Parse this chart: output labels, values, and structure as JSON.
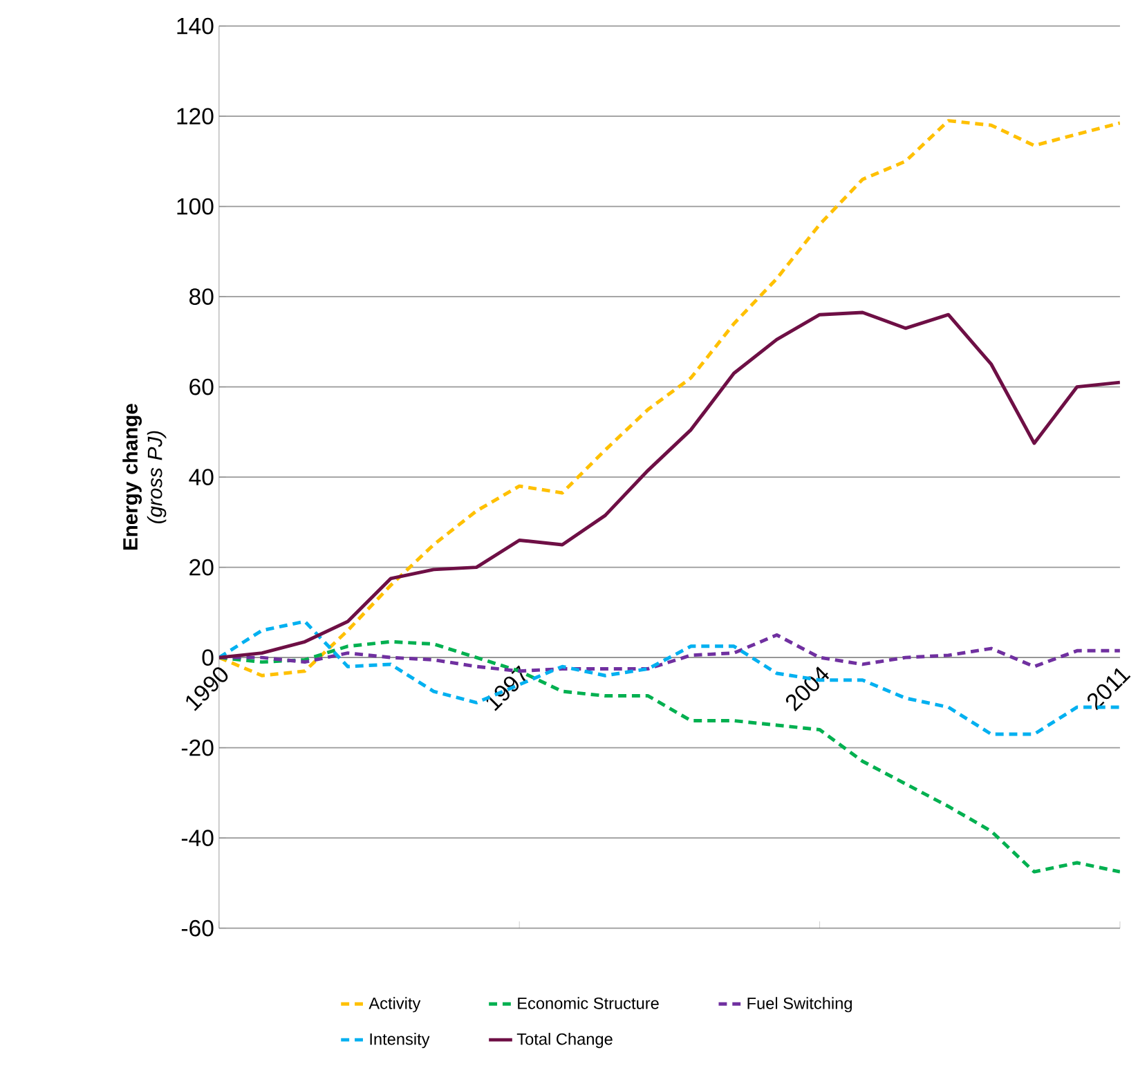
{
  "chart_data": {
    "type": "line",
    "ylabel": "**Energy change** *(gross PJ)*",
    "x": [
      1990,
      1991,
      1992,
      1993,
      1994,
      1995,
      1996,
      1997,
      1998,
      1999,
      2000,
      2001,
      2002,
      2003,
      2004,
      2005,
      2006,
      2007,
      2008,
      2009,
      2010,
      2011
    ],
    "xlim": [
      1990,
      2011
    ],
    "xticks": [
      1990,
      1997,
      2004,
      2011
    ],
    "ylim": [
      -60,
      140
    ],
    "yticks": [
      -60,
      -40,
      -20,
      0,
      20,
      40,
      60,
      80,
      100,
      120,
      140
    ],
    "grid": "y",
    "legend": "bottom",
    "marker": "none",
    "series": [
      {
        "name": "Activity",
        "color": "#ffc000",
        "line_style": "dashed",
        "values": [
          0,
          -4,
          -3,
          6,
          16,
          25,
          32.5,
          38,
          36.5,
          46,
          55,
          62,
          74,
          84,
          96,
          106,
          110,
          119,
          118,
          113.5,
          116,
          118.5
        ]
      },
      {
        "name": "Economic Structure",
        "color": "#00b050",
        "line_style": "dashed",
        "values": [
          0,
          -1,
          -0.5,
          2.5,
          3.5,
          3,
          0,
          -3,
          -7.5,
          -8.5,
          -8.5,
          -14,
          -14,
          -15,
          -16,
          -23,
          -28,
          -33,
          -38.5,
          -47.5,
          -45.5,
          -47.5
        ]
      },
      {
        "name": "Fuel Switching",
        "color": "#7030a0",
        "line_style": "dashed",
        "values": [
          0,
          0,
          -1,
          1,
          0,
          -0.5,
          -2,
          -3,
          -2.5,
          -2.5,
          -2.5,
          0.5,
          1,
          5,
          0,
          -1.5,
          0,
          0.5,
          2,
          -2,
          1.5,
          1.5
        ]
      },
      {
        "name": "Intensity",
        "color": "#00b0f0",
        "line_style": "dashed",
        "values": [
          0,
          6,
          8,
          -2,
          -1.5,
          -7.5,
          -10,
          -6,
          -2,
          -4,
          -2.5,
          2.5,
          2.5,
          -3.5,
          -5,
          -5,
          -9,
          -11,
          -17,
          -17,
          -11,
          -11
        ]
      },
      {
        "name": "Total Change",
        "color": "#6e0f45",
        "line_style": "solid",
        "values": [
          0,
          1,
          3.5,
          8,
          17.5,
          19.5,
          20,
          26,
          25,
          31.5,
          41.5,
          50.5,
          63,
          70.5,
          76,
          76.5,
          73,
          76,
          65,
          47.5,
          60,
          61
        ]
      }
    ]
  }
}
